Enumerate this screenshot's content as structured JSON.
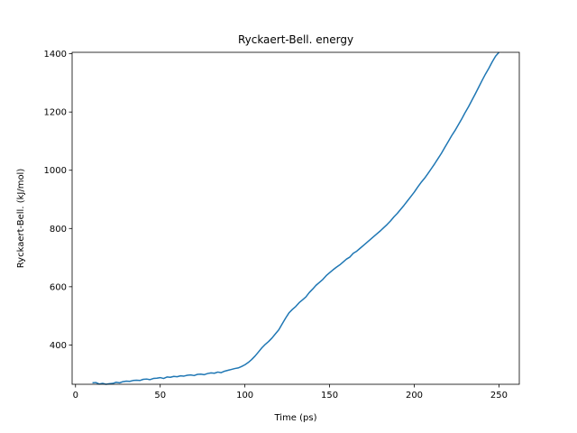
{
  "chart_data": {
    "type": "line",
    "title": "Ryckaert-Bell. energy",
    "xlabel": "Time (ps)",
    "ylabel": "Ryckaert-Bell. (kJ/mol)",
    "xlim": [
      -2,
      262
    ],
    "ylim": [
      265,
      1405
    ],
    "xticks": [
      0,
      50,
      100,
      150,
      200,
      250
    ],
    "yticks": [
      400,
      600,
      800,
      1000,
      1200,
      1400
    ],
    "grid": false,
    "legend": "none",
    "series": [
      {
        "color": "#1f77b4",
        "x": [
          10,
          12,
          14,
          16,
          18,
          20,
          22,
          24,
          26,
          28,
          30,
          32,
          34,
          36,
          38,
          40,
          42,
          44,
          46,
          48,
          50,
          52,
          54,
          56,
          58,
          60,
          62,
          64,
          66,
          68,
          70,
          72,
          74,
          76,
          78,
          80,
          82,
          84,
          86,
          88,
          90,
          92,
          94,
          96,
          98,
          100,
          102,
          104,
          106,
          108,
          110,
          112,
          114,
          116,
          118,
          120,
          122,
          124,
          126,
          128,
          130,
          132,
          134,
          136,
          138,
          140,
          142,
          144,
          146,
          148,
          150,
          152,
          154,
          156,
          158,
          160,
          162,
          164,
          166,
          168,
          170,
          172,
          174,
          176,
          178,
          180,
          182,
          184,
          186,
          188,
          190,
          192,
          194,
          196,
          198,
          200,
          202,
          204,
          206,
          208,
          210,
          212,
          214,
          216,
          218,
          220,
          222,
          224,
          226,
          228,
          230,
          232,
          234,
          236,
          238,
          240,
          242,
          244,
          246,
          248,
          250
        ],
        "y": [
          270,
          271,
          266,
          268,
          265,
          267,
          268,
          272,
          270,
          274,
          276,
          275,
          278,
          279,
          278,
          282,
          283,
          281,
          285,
          286,
          288,
          285,
          290,
          289,
          292,
          291,
          294,
          293,
          296,
          297,
          295,
          299,
          300,
          298,
          302,
          304,
          303,
          307,
          305,
          310,
          313,
          316,
          319,
          321,
          326,
          332,
          340,
          350,
          362,
          376,
          390,
          402,
          412,
          424,
          438,
          452,
          472,
          492,
          510,
          522,
          532,
          545,
          555,
          565,
          580,
          592,
          605,
          615,
          625,
          638,
          648,
          658,
          667,
          675,
          685,
          695,
          702,
          715,
          722,
          732,
          742,
          752,
          762,
          772,
          782,
          792,
          803,
          814,
          826,
          840,
          852,
          866,
          880,
          895,
          910,
          925,
          942,
          958,
          972,
          988,
          1005,
          1022,
          1040,
          1058,
          1078,
          1098,
          1118,
          1136,
          1156,
          1176,
          1198,
          1218,
          1240,
          1262,
          1285,
          1308,
          1330,
          1350,
          1372,
          1392,
          1405
        ]
      }
    ]
  }
}
